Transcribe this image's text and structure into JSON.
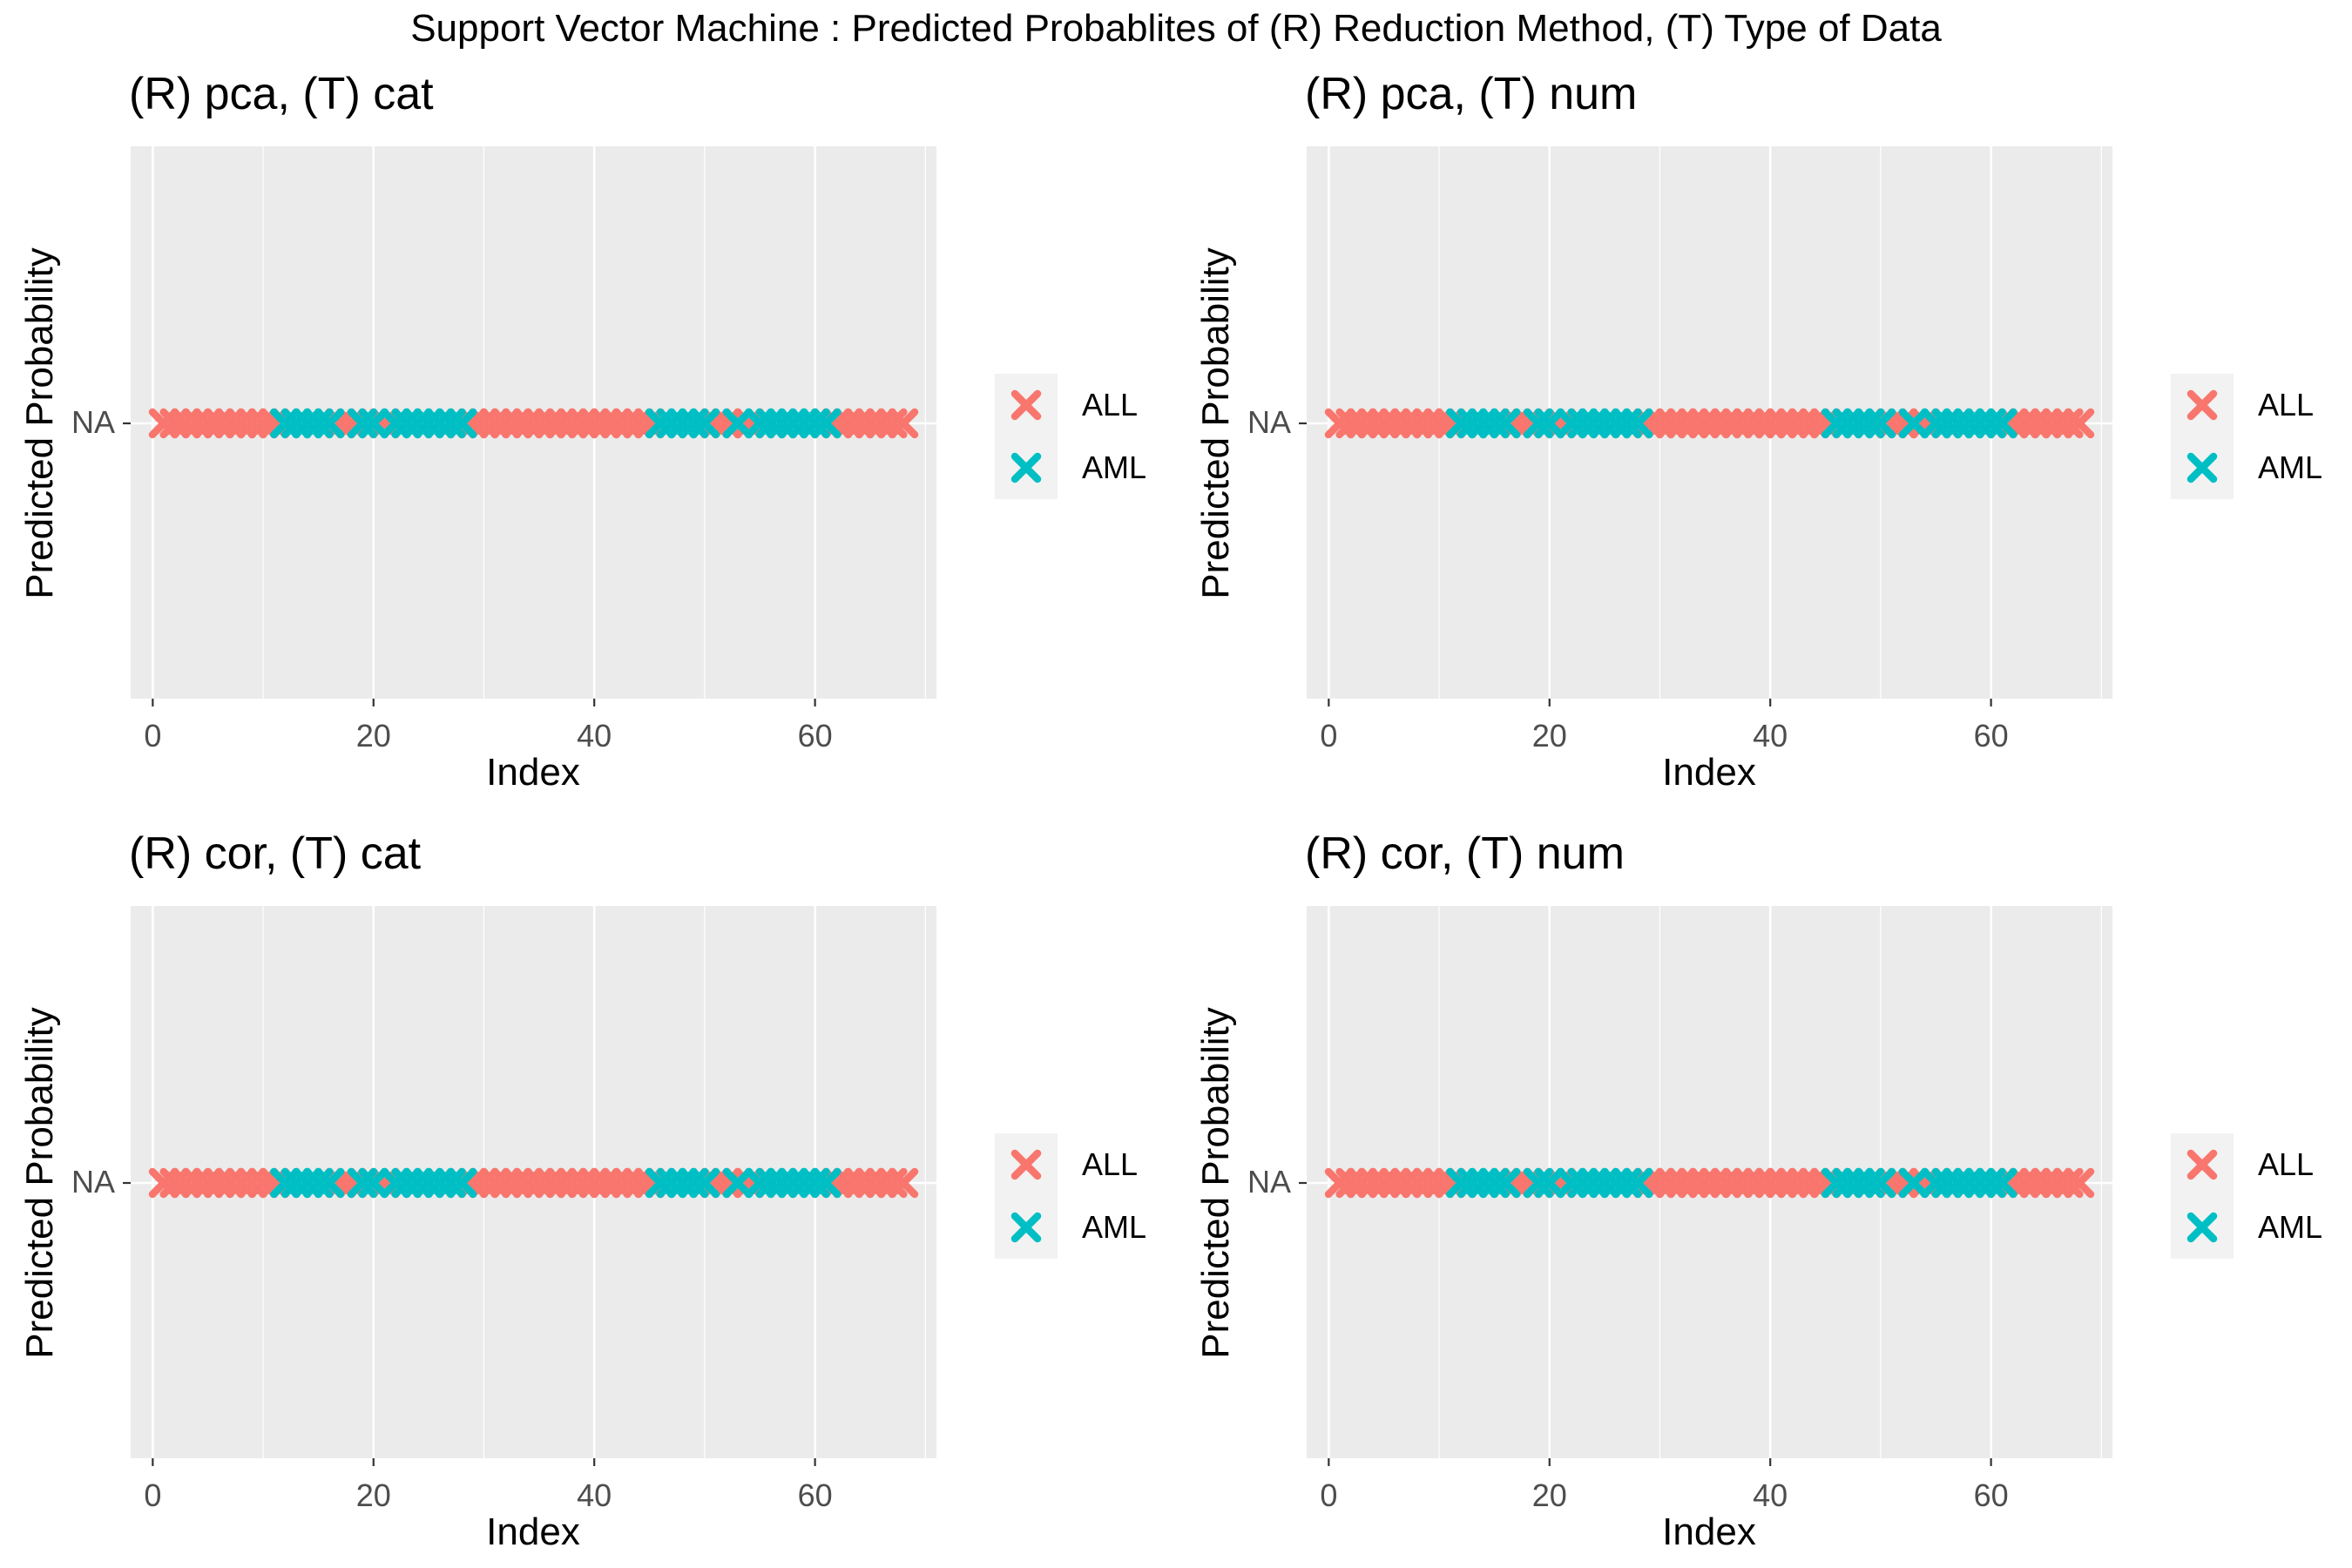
{
  "title": "Support Vector Machine : Predicted Probablites of (R) Reduction Method, (T) Type of Data",
  "colors": {
    "ALL": "#F8766D",
    "AML": "#00BFC4",
    "panel_bg": "#EBEBEB",
    "grid": "#FFFFFF"
  },
  "chart_data": [
    {
      "type": "scatter",
      "title": "(R) pca, (T) cat",
      "xlabel": "Index",
      "ylabel": "Predicted Probability",
      "xlim": [
        -2,
        71
      ],
      "x_ticks": [
        "0",
        "20",
        "40",
        "60"
      ],
      "y_ticks": [
        "NA"
      ],
      "grid": true,
      "legend_position": "right",
      "legend": [
        "ALL",
        "AML"
      ],
      "series": [
        {
          "name": "ALL",
          "x": [
            1,
            2,
            3,
            4,
            5,
            6,
            7,
            8,
            9,
            10,
            11,
            17,
            18,
            21,
            29,
            30,
            31,
            32,
            33,
            34,
            35,
            36,
            37,
            38,
            39,
            40,
            41,
            42,
            43,
            44,
            45,
            51,
            52,
            54,
            62,
            63,
            64,
            65,
            66,
            67,
            68
          ],
          "y": "NA"
        },
        {
          "name": "AML",
          "x": [
            12,
            13,
            14,
            15,
            16,
            19,
            20,
            22,
            23,
            24,
            25,
            26,
            27,
            28,
            46,
            47,
            48,
            49,
            50,
            53,
            55,
            56,
            57,
            58,
            59,
            60,
            61
          ],
          "y": "NA"
        }
      ]
    },
    {
      "type": "scatter",
      "title": "(R) pca, (T) num",
      "xlabel": "Index",
      "ylabel": "Predicted Probability",
      "xlim": [
        -2,
        71
      ],
      "x_ticks": [
        "0",
        "20",
        "40",
        "60"
      ],
      "y_ticks": [
        "NA"
      ],
      "grid": true,
      "legend_position": "right",
      "legend": [
        "ALL",
        "AML"
      ],
      "series": [
        {
          "name": "ALL",
          "x": [
            1,
            2,
            3,
            4,
            5,
            6,
            7,
            8,
            9,
            10,
            11,
            17,
            18,
            21,
            29,
            30,
            31,
            32,
            33,
            34,
            35,
            36,
            37,
            38,
            39,
            40,
            41,
            42,
            43,
            44,
            45,
            51,
            52,
            54,
            62,
            63,
            64,
            65,
            66,
            67,
            68
          ],
          "y": "NA"
        },
        {
          "name": "AML",
          "x": [
            12,
            13,
            14,
            15,
            16,
            19,
            20,
            22,
            23,
            24,
            25,
            26,
            27,
            28,
            46,
            47,
            48,
            49,
            50,
            53,
            55,
            56,
            57,
            58,
            59,
            60,
            61
          ],
          "y": "NA"
        }
      ]
    },
    {
      "type": "scatter",
      "title": "(R) cor, (T) cat",
      "xlabel": "Index",
      "ylabel": "Predicted Probability",
      "xlim": [
        -2,
        71
      ],
      "x_ticks": [
        "0",
        "20",
        "40",
        "60"
      ],
      "y_ticks": [
        "NA"
      ],
      "grid": true,
      "legend_position": "right",
      "legend": [
        "ALL",
        "AML"
      ],
      "series": [
        {
          "name": "ALL",
          "x": [
            1,
            2,
            3,
            4,
            5,
            6,
            7,
            8,
            9,
            10,
            11,
            17,
            18,
            21,
            29,
            30,
            31,
            32,
            33,
            34,
            35,
            36,
            37,
            38,
            39,
            40,
            41,
            42,
            43,
            44,
            45,
            51,
            52,
            54,
            62,
            63,
            64,
            65,
            66,
            67,
            68
          ],
          "y": "NA"
        },
        {
          "name": "AML",
          "x": [
            12,
            13,
            14,
            15,
            16,
            19,
            20,
            22,
            23,
            24,
            25,
            26,
            27,
            28,
            46,
            47,
            48,
            49,
            50,
            53,
            55,
            56,
            57,
            58,
            59,
            60,
            61
          ],
          "y": "NA"
        }
      ]
    },
    {
      "type": "scatter",
      "title": "(R) cor, (T) num",
      "xlabel": "Index",
      "ylabel": "Predicted Probability",
      "xlim": [
        -2,
        71
      ],
      "x_ticks": [
        "0",
        "20",
        "40",
        "60"
      ],
      "y_ticks": [
        "NA"
      ],
      "grid": true,
      "legend_position": "right",
      "legend": [
        "ALL",
        "AML"
      ],
      "series": [
        {
          "name": "ALL",
          "x": [
            1,
            2,
            3,
            4,
            5,
            6,
            7,
            8,
            9,
            10,
            11,
            17,
            18,
            21,
            29,
            30,
            31,
            32,
            33,
            34,
            35,
            36,
            37,
            38,
            39,
            40,
            41,
            42,
            43,
            44,
            45,
            51,
            52,
            54,
            62,
            63,
            64,
            65,
            66,
            67,
            68
          ],
          "y": "NA"
        },
        {
          "name": "AML",
          "x": [
            12,
            13,
            14,
            15,
            16,
            19,
            20,
            22,
            23,
            24,
            25,
            26,
            27,
            28,
            46,
            47,
            48,
            49,
            50,
            53,
            55,
            56,
            57,
            58,
            59,
            60,
            61
          ],
          "y": "NA"
        }
      ]
    }
  ]
}
